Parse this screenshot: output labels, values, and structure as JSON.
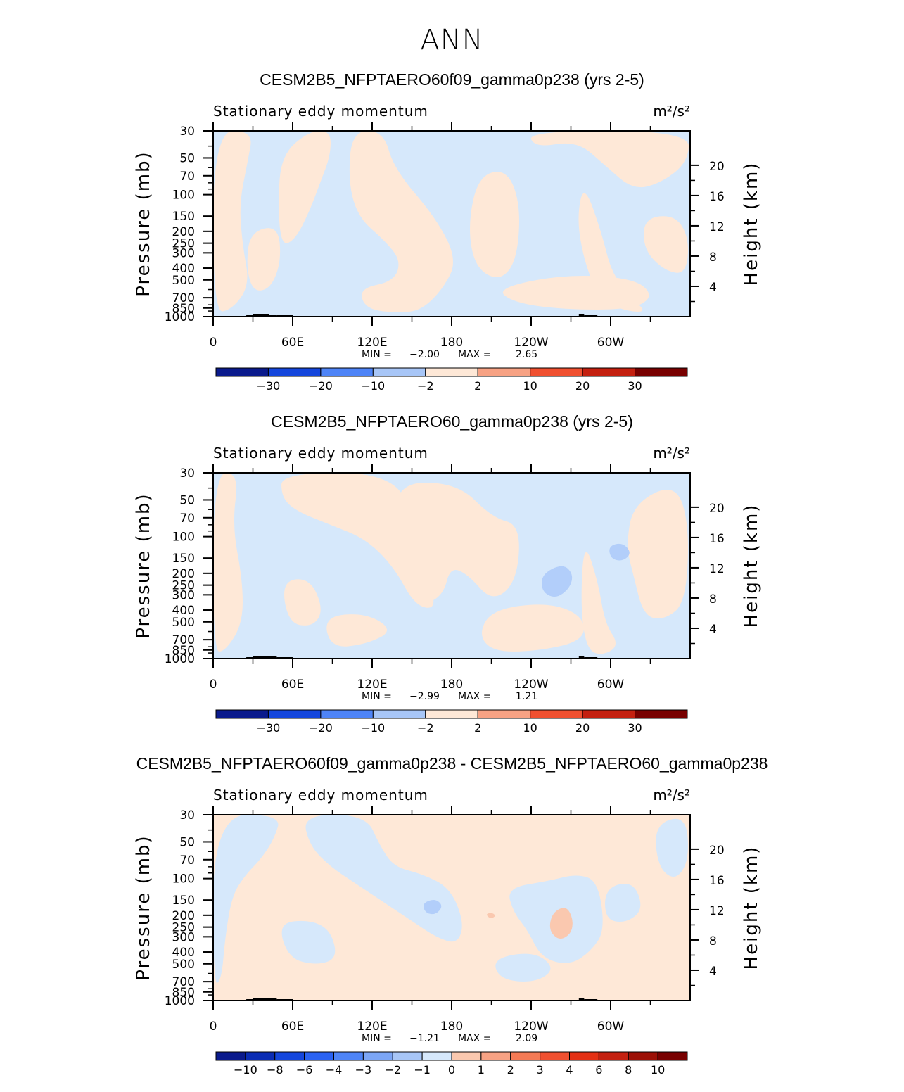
{
  "page_title": "ANN",
  "panels": [
    {
      "title": "CESM2B5_NFPTAERO60f09_gamma0p238 (yrs 2-5)",
      "variable": "Stationary eddy momentum",
      "units": "m²/s²",
      "min_label": "MIN =",
      "min_value": "−2.00",
      "max_label": "MAX =",
      "max_value": "2.65",
      "colorbar_labels": [
        "−30",
        "−20",
        "−10",
        "−2",
        "2",
        "10",
        "20",
        "30"
      ]
    },
    {
      "title": "CESM2B5_NFPTAERO60_gamma0p238 (yrs 2-5)",
      "variable": "Stationary eddy momentum",
      "units": "m²/s²",
      "min_label": "MIN =",
      "min_value": "−2.99",
      "max_label": "MAX =",
      "max_value": "1.21",
      "colorbar_labels": [
        "−30",
        "−20",
        "−10",
        "−2",
        "2",
        "10",
        "20",
        "30"
      ]
    },
    {
      "title": "CESM2B5_NFPTAERO60f09_gamma0p238 - CESM2B5_NFPTAERO60_gamma0p238",
      "variable": "Stationary eddy momentum",
      "units": "m²/s²",
      "min_label": "MIN =",
      "min_value": "−1.21",
      "max_label": "MAX =",
      "max_value": "2.09",
      "colorbar_labels": [
        "−10",
        "−8",
        "−6",
        "−4",
        "−3",
        "−2",
        "−1",
        "0",
        "1",
        "2",
        "3",
        "4",
        "6",
        "8",
        "10"
      ]
    }
  ],
  "chart_data": {
    "type": "heatmap",
    "x_ticks": [
      "0",
      "60E",
      "120E",
      "180",
      "120W",
      "60W"
    ],
    "y_ticks_pressure": [
      "30",
      "50",
      "70",
      "100",
      "150",
      "200",
      "250",
      "300",
      "400",
      "500",
      "700",
      "850",
      "1000"
    ],
    "y_ticks_height": [
      "20",
      "16",
      "12",
      "8",
      "4"
    ],
    "ylabel_left": "Pressure (mb)",
    "ylabel_right": "Height (km)",
    "y_scale": "log",
    "colors": {
      "neg_light": "#d6e8fb",
      "pos_light": "#fee8d7",
      "neg_mid": "#b2cefa",
      "pos_mid": "#fac8af",
      "terrain": "#000000"
    },
    "colorbar_colors_17": [
      "#0a1a8c",
      "#0a2cb4",
      "#1446dc",
      "#2a62f2",
      "#4e84f7",
      "#7ca6f6",
      "#a8c6f7",
      "#d6e8fb",
      "#fee8d7",
      "#fac8af",
      "#f7a284",
      "#f47a55",
      "#f05030",
      "#e43014",
      "#c42010",
      "#9c1006",
      "#780000"
    ]
  }
}
